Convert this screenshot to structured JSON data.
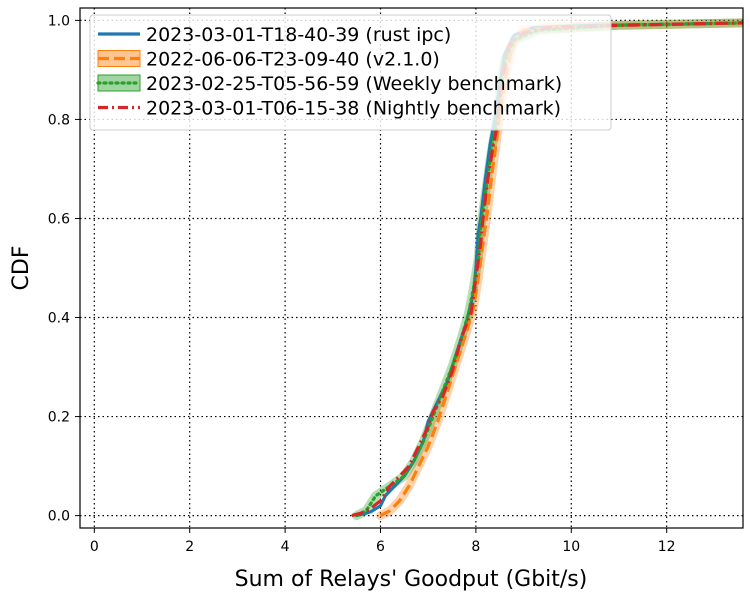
{
  "chart_data": {
    "type": "line",
    "title": "",
    "xlabel": "Sum of Relays' Goodput (Gbit/s)",
    "ylabel": "CDF",
    "xlim": [
      -0.3,
      13.6
    ],
    "ylim": [
      -0.025,
      1.025
    ],
    "xticks": [
      0,
      2,
      4,
      6,
      8,
      10,
      12
    ],
    "yticks": [
      0.0,
      0.2,
      0.4,
      0.6,
      0.8,
      1.0
    ],
    "xtick_labels": [
      "0",
      "2",
      "4",
      "6",
      "8",
      "10",
      "12"
    ],
    "ytick_labels": [
      "0.0",
      "0.2",
      "0.4",
      "0.6",
      "0.8",
      "1.0"
    ],
    "grid": true,
    "legend_position": "upper left",
    "series": [
      {
        "name": "2023-03-01-T18-40-39 (rust ipc)",
        "color": "#1f77b4",
        "linestyle": "solid",
        "band": false,
        "points": [
          [
            5.5,
            0.0
          ],
          [
            5.8,
            0.008
          ],
          [
            6.0,
            0.02
          ],
          [
            6.1,
            0.04
          ],
          [
            6.3,
            0.06
          ],
          [
            6.5,
            0.08
          ],
          [
            6.7,
            0.11
          ],
          [
            6.9,
            0.15
          ],
          [
            7.0,
            0.19
          ],
          [
            7.2,
            0.23
          ],
          [
            7.4,
            0.27
          ],
          [
            7.6,
            0.33
          ],
          [
            7.8,
            0.39
          ],
          [
            7.95,
            0.45
          ],
          [
            8.0,
            0.5
          ],
          [
            8.05,
            0.57
          ],
          [
            8.1,
            0.6
          ],
          [
            8.2,
            0.68
          ],
          [
            8.3,
            0.75
          ],
          [
            8.4,
            0.8
          ],
          [
            8.5,
            0.87
          ],
          [
            8.6,
            0.93
          ],
          [
            8.8,
            0.97
          ],
          [
            9.2,
            0.985
          ],
          [
            10.5,
            0.99
          ],
          [
            12.0,
            0.992
          ],
          [
            13.6,
            0.995
          ]
        ]
      },
      {
        "name": "2022-06-06-T23-09-40 (v2.1.0)",
        "color": "#ff7f0e",
        "linestyle": "dashed",
        "band": true,
        "points": [
          [
            6.0,
            0.0
          ],
          [
            6.2,
            0.01
          ],
          [
            6.4,
            0.03
          ],
          [
            6.6,
            0.06
          ],
          [
            6.8,
            0.1
          ],
          [
            7.0,
            0.14
          ],
          [
            7.2,
            0.19
          ],
          [
            7.4,
            0.25
          ],
          [
            7.6,
            0.31
          ],
          [
            7.8,
            0.37
          ],
          [
            7.95,
            0.42
          ],
          [
            8.05,
            0.48
          ],
          [
            8.15,
            0.55
          ],
          [
            8.25,
            0.62
          ],
          [
            8.35,
            0.7
          ],
          [
            8.45,
            0.77
          ],
          [
            8.55,
            0.84
          ],
          [
            8.65,
            0.9
          ],
          [
            8.8,
            0.96
          ],
          [
            9.0,
            0.98
          ],
          [
            9.5,
            0.985
          ],
          [
            11.0,
            0.99
          ],
          [
            13.6,
            0.995
          ]
        ]
      },
      {
        "name": "2023-02-25-T05-56-59 (Weekly benchmark)",
        "color": "#2ca02c",
        "linestyle": "dotted",
        "band": true,
        "points": [
          [
            5.5,
            0.0
          ],
          [
            5.7,
            0.01
          ],
          [
            5.9,
            0.04
          ],
          [
            6.2,
            0.06
          ],
          [
            6.5,
            0.08
          ],
          [
            6.7,
            0.11
          ],
          [
            6.9,
            0.15
          ],
          [
            7.1,
            0.2
          ],
          [
            7.3,
            0.25
          ],
          [
            7.5,
            0.3
          ],
          [
            7.7,
            0.36
          ],
          [
            7.85,
            0.41
          ],
          [
            7.95,
            0.46
          ],
          [
            8.05,
            0.52
          ],
          [
            8.1,
            0.58
          ],
          [
            8.2,
            0.65
          ],
          [
            8.3,
            0.72
          ],
          [
            8.4,
            0.78
          ],
          [
            8.5,
            0.85
          ],
          [
            8.6,
            0.92
          ],
          [
            8.8,
            0.96
          ],
          [
            9.3,
            0.98
          ],
          [
            11.0,
            0.99
          ],
          [
            13.6,
            0.995
          ]
        ]
      },
      {
        "name": "2023-03-01-T06-15-38 (Nightly benchmark)",
        "color": "#d62728",
        "linestyle": "dashdot",
        "band": false,
        "points": [
          [
            5.4,
            0.0
          ],
          [
            5.6,
            0.005
          ],
          [
            5.8,
            0.015
          ],
          [
            6.0,
            0.03
          ],
          [
            6.2,
            0.06
          ],
          [
            6.4,
            0.08
          ],
          [
            6.6,
            0.1
          ],
          [
            6.8,
            0.14
          ],
          [
            7.0,
            0.18
          ],
          [
            7.1,
            0.21
          ],
          [
            7.3,
            0.24
          ],
          [
            7.5,
            0.29
          ],
          [
            7.7,
            0.36
          ],
          [
            7.9,
            0.41
          ],
          [
            8.0,
            0.48
          ],
          [
            8.1,
            0.55
          ],
          [
            8.15,
            0.6
          ],
          [
            8.25,
            0.68
          ],
          [
            8.35,
            0.74
          ],
          [
            8.45,
            0.79
          ],
          [
            8.55,
            0.88
          ],
          [
            8.7,
            0.95
          ],
          [
            9.0,
            0.975
          ],
          [
            9.5,
            0.985
          ],
          [
            11.0,
            0.99
          ],
          [
            13.6,
            0.995
          ]
        ]
      }
    ]
  }
}
